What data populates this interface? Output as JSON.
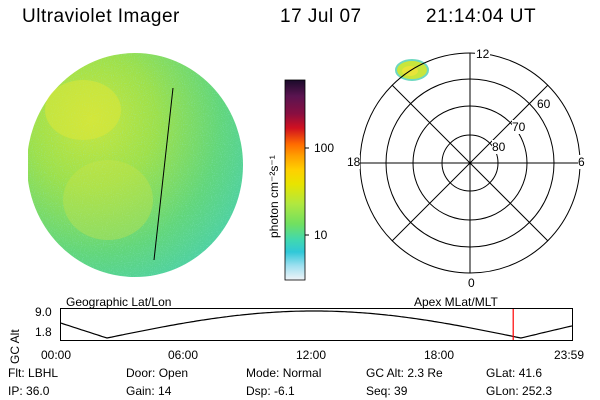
{
  "header": {
    "title": "Ultraviolet Imager",
    "date": "17 Jul 07",
    "time": "21:14:04 UT"
  },
  "colorbar": {
    "unit_label": "photon cm⁻²s⁻¹",
    "tick_100": "100",
    "tick_10": "10",
    "colors": [
      "#1a0a2a",
      "#5a1450",
      "#8a0e40",
      "#b00020",
      "#e01818",
      "#ff6a00",
      "#ff9a00",
      "#ffc800",
      "#e8e400",
      "#b8e840",
      "#78e060",
      "#40d8b0",
      "#30c8d8",
      "#90e0f0",
      "#e0eef8"
    ]
  },
  "polar_plot": {
    "mlt_top": "12",
    "mlt_left": "18",
    "mlt_right": "6",
    "mlt_bottom": "0",
    "lat_60": "60",
    "lat_70": "70",
    "lat_80": "80"
  },
  "timeline": {
    "left_label": "Geographic Lat/Lon",
    "right_label": "Apex MLat/MLT",
    "axis_title": "GC Alt",
    "y_ticks": [
      "9.0",
      "1.8"
    ],
    "x_ticks": [
      "00:00",
      "06:00",
      "12:00",
      "18:00",
      "23:59"
    ],
    "marker_color": "#ff0000",
    "marker_time_hours": 21.24
  },
  "footer": {
    "row1": [
      {
        "label": "Flt:",
        "value": "LBHL"
      },
      {
        "label": "Door:",
        "value": "Open"
      },
      {
        "label": "Mode:",
        "value": "Normal"
      },
      {
        "label": "GC Alt:",
        "value": "2.3 Re"
      },
      {
        "label": "GLat:",
        "value": "41.6"
      }
    ],
    "row2": [
      {
        "label": "IP:",
        "value": "36.0"
      },
      {
        "label": "Gain:",
        "value": "14"
      },
      {
        "label": "Dsp:",
        "value": "-6.1"
      },
      {
        "label": "Seq:",
        "value": "39"
      },
      {
        "label": "GLon:",
        "value": "252.3"
      }
    ]
  }
}
